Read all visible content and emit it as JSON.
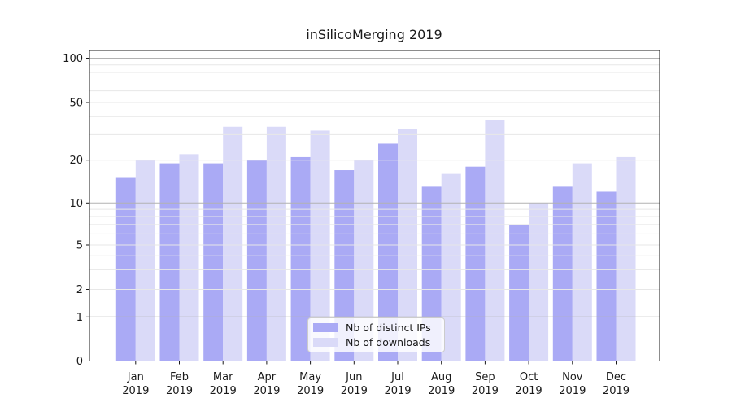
{
  "chart_data": {
    "type": "bar",
    "title": "inSilicoMerging 2019",
    "categories": [
      "Jan 2019",
      "Feb 2019",
      "Mar 2019",
      "Apr 2019",
      "May 2019",
      "Jun 2019",
      "Jul 2019",
      "Aug 2019",
      "Sep 2019",
      "Oct 2019",
      "Nov 2019",
      "Dec 2019"
    ],
    "series": [
      {
        "name": "Nb of distinct IPs",
        "color": "#aaaaf5",
        "values": [
          15,
          19,
          19,
          20,
          21,
          17,
          26,
          13,
          18,
          7,
          13,
          12
        ]
      },
      {
        "name": "Nb of downloads",
        "color": "#dadaf8",
        "values": [
          20,
          22,
          34,
          34,
          32,
          20,
          33,
          16,
          38,
          10,
          19,
          21
        ]
      }
    ],
    "xlabel": "",
    "ylabel": "",
    "yscale": "symlog",
    "y_ticks": [
      0,
      1,
      2,
      5,
      10,
      20,
      50,
      100
    ],
    "ylim": [
      0,
      113
    ],
    "grid": true,
    "legend_position": "lower center"
  },
  "colors": {
    "major_gridline": "#b2b2b2",
    "minor_gridline": "#e7e7e7",
    "axis": "#1a1a1a",
    "text": "#1a1a1a"
  }
}
